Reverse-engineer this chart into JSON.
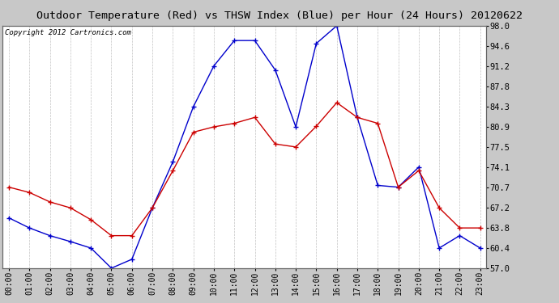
{
  "title": "Outdoor Temperature (Red) vs THSW Index (Blue) per Hour (24 Hours) 20120622",
  "copyright": "Copyright 2012 Cartronics.com",
  "hours": [
    "00:00",
    "01:00",
    "02:00",
    "03:00",
    "04:00",
    "05:00",
    "06:00",
    "07:00",
    "08:00",
    "09:00",
    "10:00",
    "11:00",
    "12:00",
    "13:00",
    "14:00",
    "15:00",
    "16:00",
    "17:00",
    "18:00",
    "19:00",
    "20:00",
    "21:00",
    "22:00",
    "23:00"
  ],
  "red_temp": [
    70.7,
    69.8,
    68.2,
    67.2,
    65.2,
    62.5,
    62.5,
    67.2,
    73.5,
    80.0,
    80.9,
    81.5,
    82.5,
    78.0,
    77.5,
    81.0,
    85.0,
    82.5,
    81.5,
    70.7,
    73.5,
    67.2,
    63.8,
    63.8
  ],
  "blue_thsw": [
    65.5,
    63.8,
    62.5,
    61.5,
    60.4,
    57.0,
    58.5,
    67.2,
    75.0,
    84.3,
    91.2,
    95.5,
    95.5,
    90.5,
    80.9,
    95.0,
    98.0,
    82.5,
    71.0,
    70.7,
    74.1,
    60.4,
    62.5,
    60.4
  ],
  "ylim": [
    57.0,
    98.0
  ],
  "yticks": [
    57.0,
    60.4,
    63.8,
    67.2,
    70.7,
    74.1,
    77.5,
    80.9,
    84.3,
    87.8,
    91.2,
    94.6,
    98.0
  ],
  "bg_color": "#c8c8c8",
  "plot_bg": "#ffffff",
  "red_color": "#cc0000",
  "blue_color": "#0000cc",
  "grid_color": "#bbbbbb",
  "title_bg": "#c8c8c8",
  "title_fontsize": 9.5,
  "copyright_fontsize": 6.5,
  "ytick_fontsize": 7.5,
  "xtick_fontsize": 7.0
}
